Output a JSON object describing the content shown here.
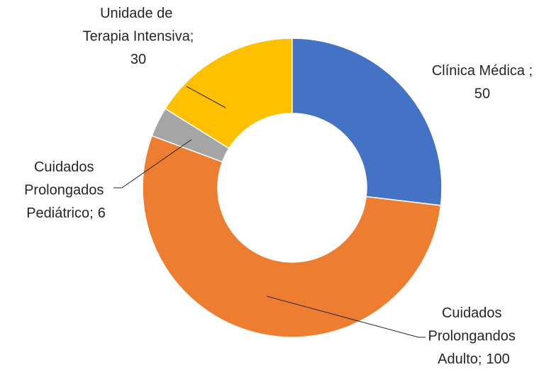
{
  "chart_data": {
    "type": "donut",
    "categories": [
      "Clínica Médica ;",
      "Cuidados Prolongandos Adulto;",
      "Cuidados Prolongados Pediátrico;",
      "Unidade de Terapia Intensiva;"
    ],
    "values": [
      50,
      100,
      6,
      30
    ],
    "colors": [
      "#4472c4",
      "#ed7d31",
      "#a5a5a5",
      "#ffc000"
    ]
  }
}
